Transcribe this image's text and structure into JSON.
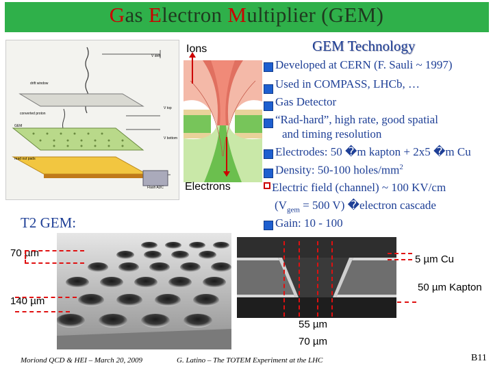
{
  "title": {
    "g": "G",
    "as": "as ",
    "e": "E",
    "lectron": "lectron ",
    "m": "M",
    "ultiplier": "ultiplier (GEM)"
  },
  "subtitle": "GEM Technology",
  "left_labels": {
    "ions": "Ions",
    "electrons": "Electrons",
    "t2gem": "T2 GEM:"
  },
  "schematic_labels": {
    "vdrift": "V drift",
    "drift_window": "drift window",
    "converted_proton": "converted proton",
    "gem": "GEM",
    "readout": "read out pads",
    "flash_adc": "Flash ADC",
    "vtop": "V top",
    "vbot": "V bottom"
  },
  "bullets": {
    "b1": "Developed at CERN (F. Sauli ~ 1997)",
    "b2": "Used in COMPASS, LHCb, …",
    "b3": "Gas Detector",
    "b4a": "“Rad-hard”, high rate, good spatial",
    "b4b": "and timing resolution",
    "b5": "Electrodes: 50 �m kapton + 2x5 �m Cu",
    "b6": "Density: 50-100 holes/mm",
    "b6sup": "2",
    "b7": "Electric field (channel) ~ 100 KV/cm",
    "b8a": "(V",
    "b8sub": "gem",
    "b8b": " = 500 V) �electron cascade",
    "b9": "Gain: 10 - 100"
  },
  "dimensions": {
    "d70": "70 µm",
    "d140": "140 µm",
    "d5cu": "5 µm Cu",
    "d50kapton": "50 µm Kapton",
    "d55": "55 µm",
    "d70b": "70 µm"
  },
  "footer": {
    "left": "Moriond QCD & HEI – March 20, 2009",
    "center": "G. Latino – The TOTEM Experiment at the LHC",
    "page": "B11"
  },
  "colors": {
    "title_bar": "#2fb04a",
    "bullet_text": "#1e3f96",
    "bullet_icon": "#1e5fcf",
    "dash": "#e01010"
  }
}
